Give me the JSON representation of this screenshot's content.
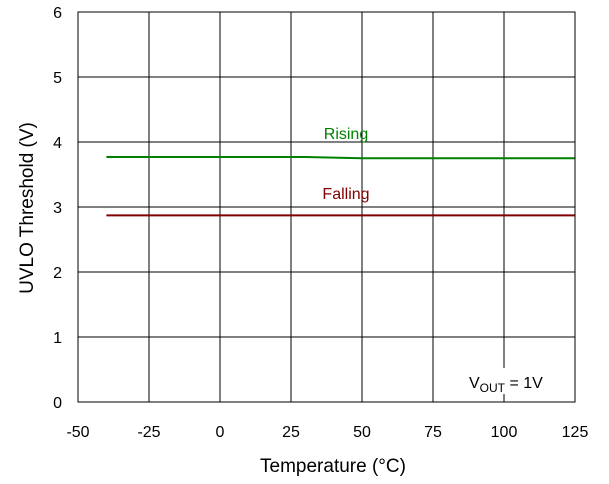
{
  "chart_data": {
    "type": "line",
    "title": "",
    "xlabel": "Temperature (°C)",
    "ylabel": "UVLO Threshold (V)",
    "xlim": [
      -50,
      125
    ],
    "ylim": [
      0,
      6
    ],
    "x_ticks": [
      -50,
      -25,
      0,
      25,
      50,
      75,
      100,
      125
    ],
    "y_ticks": [
      0,
      1,
      2,
      3,
      4,
      5,
      6
    ],
    "x_tick_labels": [
      "-50",
      "-25",
      "0",
      "25",
      "50",
      "75",
      "100",
      "125"
    ],
    "y_tick_labels": [
      "0",
      "1",
      "2",
      "3",
      "4",
      "5",
      "6"
    ],
    "grid": true,
    "legend": "none",
    "series": [
      {
        "name": "Rising",
        "color": "#008000",
        "x": [
          -40,
          -25,
          0,
          25,
          30,
          40,
          50,
          75,
          100,
          125
        ],
        "y": [
          3.77,
          3.77,
          3.77,
          3.77,
          3.77,
          3.76,
          3.75,
          3.75,
          3.75,
          3.75
        ]
      },
      {
        "name": "Falling",
        "color": "#800000",
        "x": [
          -40,
          -25,
          0,
          25,
          50,
          75,
          100,
          125
        ],
        "y": [
          2.87,
          2.87,
          2.87,
          2.87,
          2.87,
          2.87,
          2.87,
          2.87
        ]
      }
    ],
    "annotations": {
      "rising_label": "Rising",
      "falling_label": "Falling",
      "condition_main": "V",
      "condition_sub": "OUT",
      "condition_rest": " = 1V"
    }
  }
}
